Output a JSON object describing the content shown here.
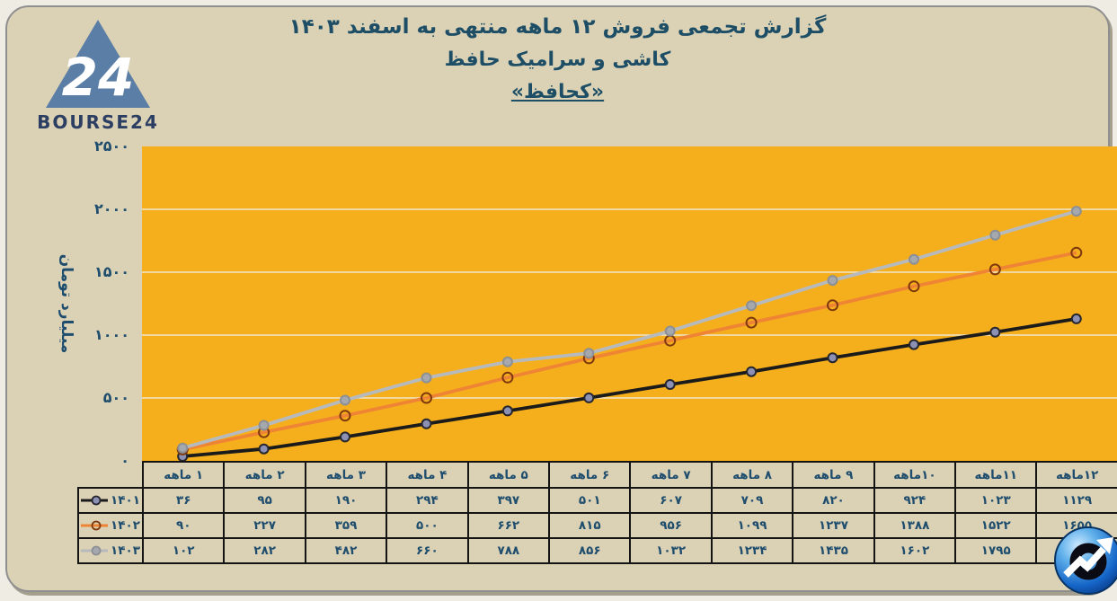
{
  "brand": {
    "name": "BOURSE24",
    "triangle_number": "24"
  },
  "title": {
    "line1": "گزارش تجمعی فروش ۱۲ ماهه منتهی به اسفند ۱۴۰۳",
    "line2": "کاشی و سرامیک حافظ",
    "ticker": "«کحافظ»"
  },
  "colors": {
    "card_bg": "#dbd2b5",
    "plot_bg": "#f6af1c",
    "gridline": "#efe6cd",
    "text_navy": "#1f4d6e",
    "table_border": "#141414"
  },
  "chart_data": {
    "type": "line",
    "title": "گزارش تجمعی فروش ۱۲ ماهه منتهی به اسفند ۱۴۰۳ کاشی و سرامیک حافظ «کحافظ»",
    "ylabel": "میلیارد تومان",
    "xlabel": "",
    "ylim": [
      0,
      2500
    ],
    "grid": "horizontal",
    "legend_position": "table-left-column",
    "yticks": {
      "values": [
        0,
        500,
        1000,
        1500,
        2000,
        2500
      ],
      "labels": [
        "۰",
        "۵۰۰",
        "۱۰۰۰",
        "۱۵۰۰",
        "۲۰۰۰",
        "۲۵۰۰"
      ]
    },
    "categories": [
      "۱ ماهه",
      "۲ ماهه",
      "۳ ماهه",
      "۴ ماهه",
      "۵ ماهه",
      "۶ ماهه",
      "۷ ماهه",
      "۸ ماهه",
      "۹ ماهه",
      "۱۰ماهه",
      "۱۱ماهه",
      "۱۲ماهه"
    ],
    "series": [
      {
        "name": "۱۴۰۱",
        "color": "#1b1b1b",
        "marker": {
          "shape": "circle",
          "fill": "#8c91b4",
          "stroke": "#26262e",
          "r": 5
        },
        "values": [
          36,
          95,
          190,
          294,
          397,
          501,
          607,
          709,
          820,
          924,
          1023,
          1129
        ],
        "display": [
          "۳۶",
          "۹۵",
          "۱۹۰",
          "۲۹۴",
          "۳۹۷",
          "۵۰۱",
          "۶۰۷",
          "۷۰۹",
          "۸۲۰",
          "۹۲۴",
          "۱۰۲۳",
          "۱۱۲۹"
        ]
      },
      {
        "name": "۱۴۰۲",
        "color": "#ee8434",
        "marker": {
          "shape": "circle",
          "fill": "none",
          "stroke": "#7e3a0e",
          "r": 5.5
        },
        "values": [
          90,
          227,
          359,
          500,
          662,
          815,
          956,
          1099,
          1237,
          1388,
          1522,
          1655
        ],
        "display": [
          "۹۰",
          "۲۲۷",
          "۳۵۹",
          "۵۰۰",
          "۶۶۲",
          "۸۱۵",
          "۹۵۶",
          "۱۰۹۹",
          "۱۲۳۷",
          "۱۳۸۸",
          "۱۵۲۲",
          "۱۶۵۵"
        ]
      },
      {
        "name": "۱۴۰۳",
        "color": "#b7babd",
        "marker": {
          "shape": "circle",
          "fill": "#a5a8ad",
          "stroke": "#8c8f94",
          "r": 5
        },
        "values": [
          102,
          282,
          482,
          660,
          788,
          856,
          1032,
          1234,
          1435,
          1602,
          1795,
          1985
        ],
        "display": [
          "۱۰۲",
          "۲۸۲",
          "۴۸۲",
          "۶۶۰",
          "۷۸۸",
          "۸۵۶",
          "۱۰۳۲",
          "۱۲۳۴",
          "۱۴۳۵",
          "۱۶۰۲",
          "۱۷۹۵",
          "۱۹۸۵"
        ]
      }
    ]
  }
}
